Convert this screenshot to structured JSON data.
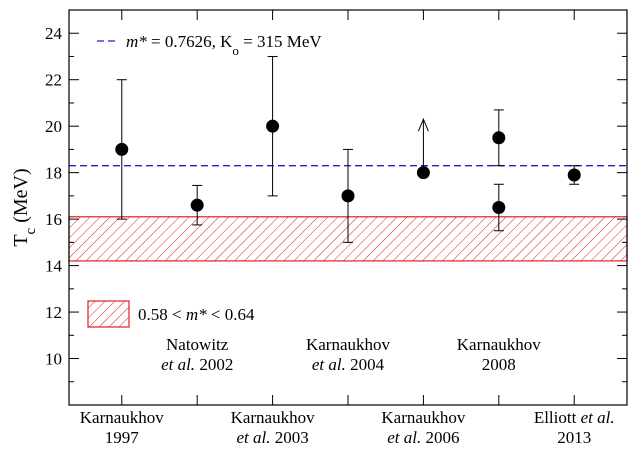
{
  "chart_data": {
    "type": "scatter",
    "ylabel": "T_c (MeV)",
    "ylim": [
      8,
      25
    ],
    "yticks": [
      10,
      12,
      14,
      16,
      18,
      20,
      22,
      24
    ],
    "ytick_labels": [
      "10",
      "12",
      "14",
      "16",
      "18",
      "20",
      "22",
      "24"
    ],
    "grid": false,
    "points": [
      {
        "x": 1,
        "y": 19.0,
        "err_low": 3.0,
        "err_high": 3.0
      },
      {
        "x": 2,
        "y": 16.6,
        "err_low": 0.85,
        "err_high": 0.85
      },
      {
        "x": 3,
        "y": 20.0,
        "err_low": 3.0,
        "err_high": 3.0
      },
      {
        "x": 4,
        "y": 17.0,
        "err_low": 2.0,
        "err_high": 2.0
      },
      {
        "x": 5,
        "y": 18.0,
        "lower_limit": true,
        "arrow_to": 20.3
      },
      {
        "x": 6,
        "y": 19.5,
        "err_low": 1.2,
        "err_high": 1.2
      },
      {
        "x": 6,
        "y": 16.5,
        "err_low": 1.0,
        "err_high": 1.0
      },
      {
        "x": 7,
        "y": 17.9,
        "err_low": 0.4,
        "err_high": 0.4
      }
    ],
    "reference_line": {
      "y": 18.3,
      "color": "#2222cc",
      "style": "dashed",
      "legend_parts": [
        "m*",
        " = 0.7626, K",
        "o",
        " = 315 MeV"
      ]
    },
    "band": {
      "y_low": 14.2,
      "y_high": 16.1,
      "color": "#e02020",
      "pattern": "hatched",
      "legend_parts": [
        "0.58 < ",
        "m*",
        " < 0.64"
      ]
    },
    "top_labels": [
      {
        "x": 2,
        "line1": [
          "Natowitz"
        ],
        "line2": [
          "et al.",
          " 2002"
        ]
      },
      {
        "x": 4,
        "line1": [
          "Karnaukhov"
        ],
        "line2": [
          "et al.",
          " 2004"
        ]
      },
      {
        "x": 6,
        "line1": [
          "Karnaukhov"
        ],
        "line2": [
          "2008"
        ]
      }
    ],
    "bottom_labels": [
      {
        "x": 1,
        "line1": [
          "Karnaukhov"
        ],
        "line2": [
          "1997"
        ]
      },
      {
        "x": 3,
        "line1": [
          "Karnaukhov"
        ],
        "line2": [
          "et al.",
          " 2003"
        ]
      },
      {
        "x": 5,
        "line1": [
          "Karnaukhov"
        ],
        "line2": [
          "et al.",
          " 2006"
        ]
      },
      {
        "x": 7,
        "line1": [
          "Elliott ",
          "et al."
        ],
        "line2": [
          "2013"
        ]
      }
    ]
  }
}
